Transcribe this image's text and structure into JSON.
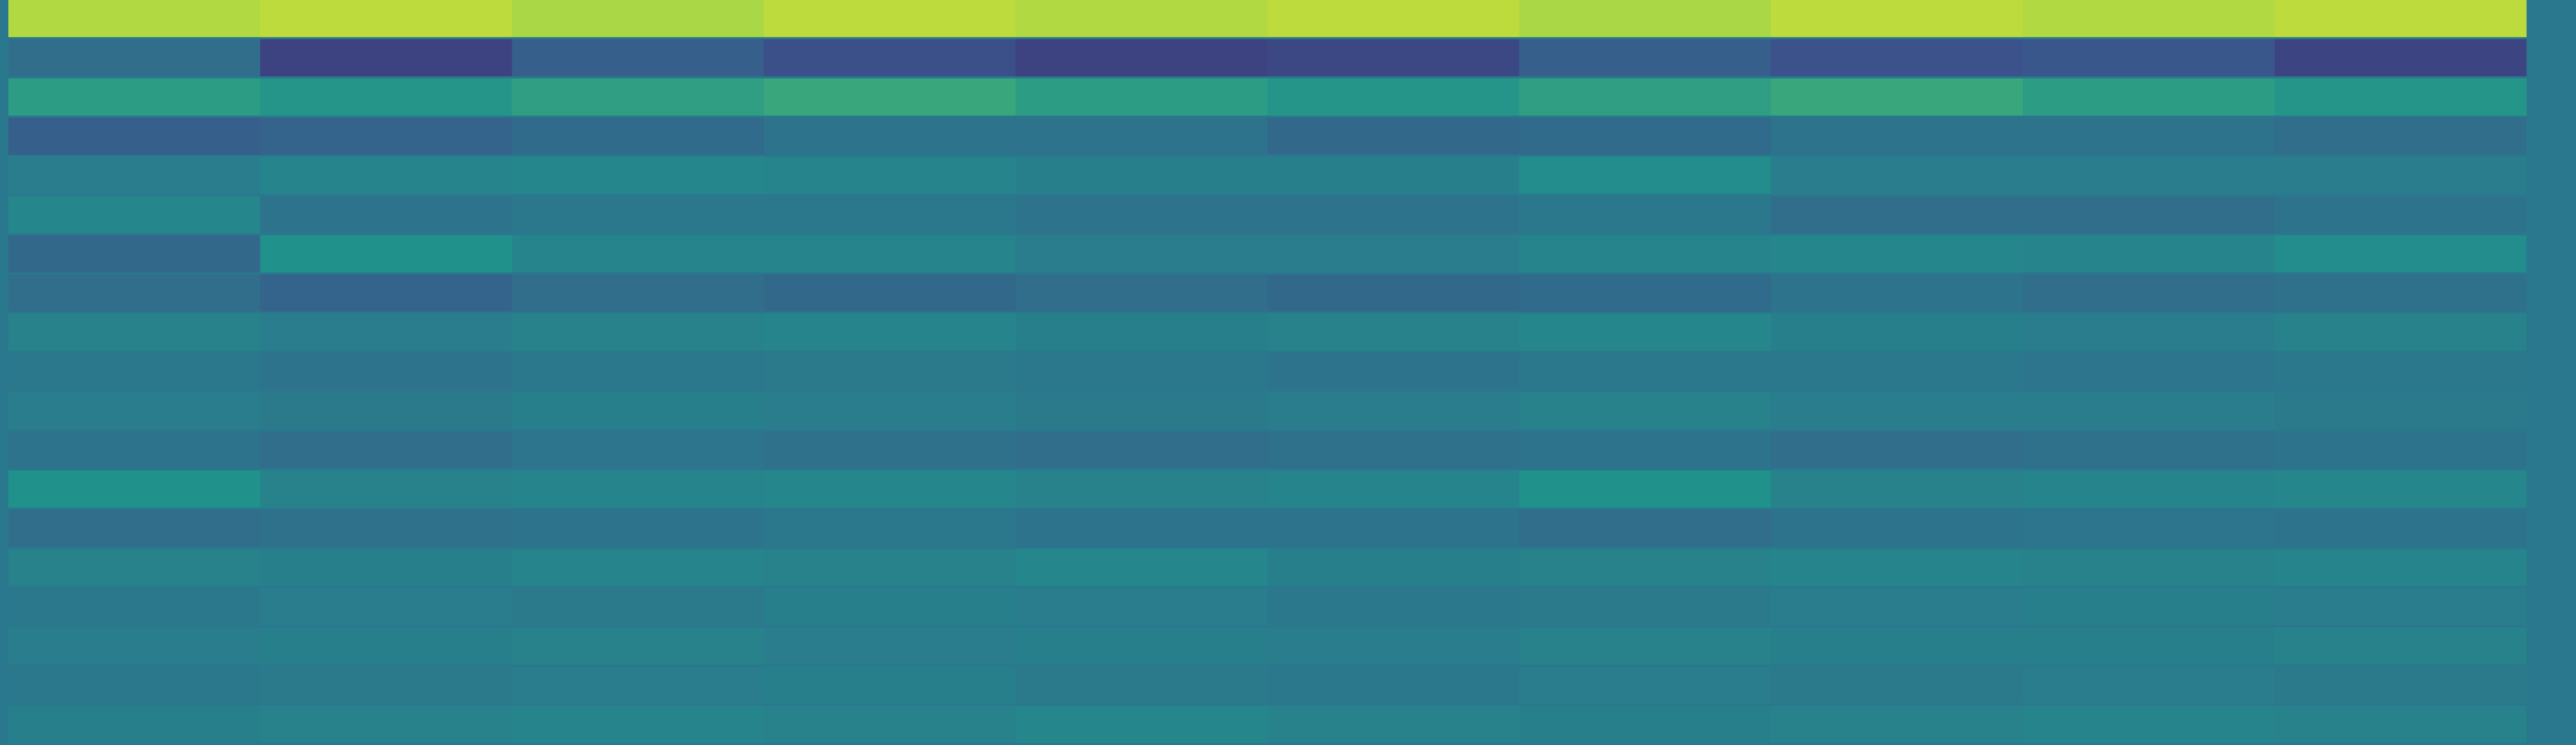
{
  "chart_data": {
    "type": "heatmap",
    "colormap": "viridis",
    "values": [
      [
        0.88,
        0.9,
        0.87,
        0.9,
        0.88,
        0.9,
        0.87,
        0.9,
        0.88,
        0.9
      ],
      [
        0.36,
        0.2,
        0.3,
        0.24,
        0.2,
        0.22,
        0.3,
        0.25,
        0.27,
        0.21
      ],
      [
        0.55,
        0.52,
        0.56,
        0.6,
        0.55,
        0.52,
        0.56,
        0.6,
        0.55,
        0.52
      ],
      [
        0.3,
        0.32,
        0.35,
        0.38,
        0.38,
        0.34,
        0.35,
        0.38,
        0.38,
        0.36
      ],
      [
        0.42,
        0.45,
        0.46,
        0.45,
        0.43,
        0.43,
        0.48,
        0.42,
        0.42,
        0.42
      ],
      [
        0.46,
        0.38,
        0.4,
        0.4,
        0.38,
        0.38,
        0.4,
        0.36,
        0.36,
        0.38
      ],
      [
        0.34,
        0.5,
        0.45,
        0.45,
        0.42,
        0.42,
        0.45,
        0.46,
        0.45,
        0.48
      ],
      [
        0.36,
        0.32,
        0.36,
        0.34,
        0.36,
        0.34,
        0.35,
        0.38,
        0.36,
        0.37
      ],
      [
        0.44,
        0.42,
        0.44,
        0.45,
        0.43,
        0.44,
        0.46,
        0.43,
        0.42,
        0.44
      ],
      [
        0.4,
        0.38,
        0.4,
        0.41,
        0.4,
        0.38,
        0.4,
        0.4,
        0.39,
        0.4
      ],
      [
        0.42,
        0.41,
        0.43,
        0.42,
        0.41,
        0.42,
        0.44,
        0.42,
        0.42,
        0.41
      ],
      [
        0.38,
        0.36,
        0.39,
        0.37,
        0.36,
        0.37,
        0.38,
        0.36,
        0.37,
        0.38
      ],
      [
        0.5,
        0.44,
        0.45,
        0.46,
        0.44,
        0.45,
        0.5,
        0.44,
        0.45,
        0.46
      ],
      [
        0.36,
        0.37,
        0.38,
        0.4,
        0.38,
        0.38,
        0.36,
        0.38,
        0.39,
        0.38
      ],
      [
        0.44,
        0.43,
        0.45,
        0.44,
        0.46,
        0.43,
        0.44,
        0.45,
        0.44,
        0.45
      ],
      [
        0.4,
        0.42,
        0.41,
        0.43,
        0.42,
        0.4,
        0.41,
        0.42,
        0.43,
        0.42
      ],
      [
        0.42,
        0.43,
        0.44,
        0.42,
        0.43,
        0.42,
        0.44,
        0.43,
        0.43,
        0.44
      ],
      [
        0.4,
        0.41,
        0.42,
        0.43,
        0.41,
        0.4,
        0.42,
        0.41,
        0.42,
        0.41
      ],
      [
        0.43,
        0.44,
        0.45,
        0.44,
        0.46,
        0.44,
        0.43,
        0.44,
        0.45,
        0.44
      ]
    ]
  }
}
